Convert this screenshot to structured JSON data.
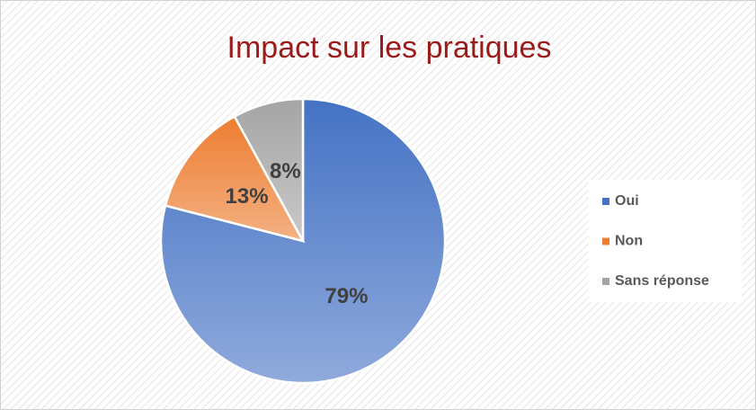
{
  "chart_data": {
    "type": "pie",
    "title": "Impact sur les pratiques",
    "categories": [
      "Oui",
      "Non",
      "Sans réponse"
    ],
    "values": [
      79,
      13,
      8
    ],
    "value_labels": [
      "79%",
      "13%",
      "8%"
    ],
    "colors": [
      "#4472c4",
      "#ed7d31",
      "#a5a5a5"
    ],
    "legend": "right"
  }
}
